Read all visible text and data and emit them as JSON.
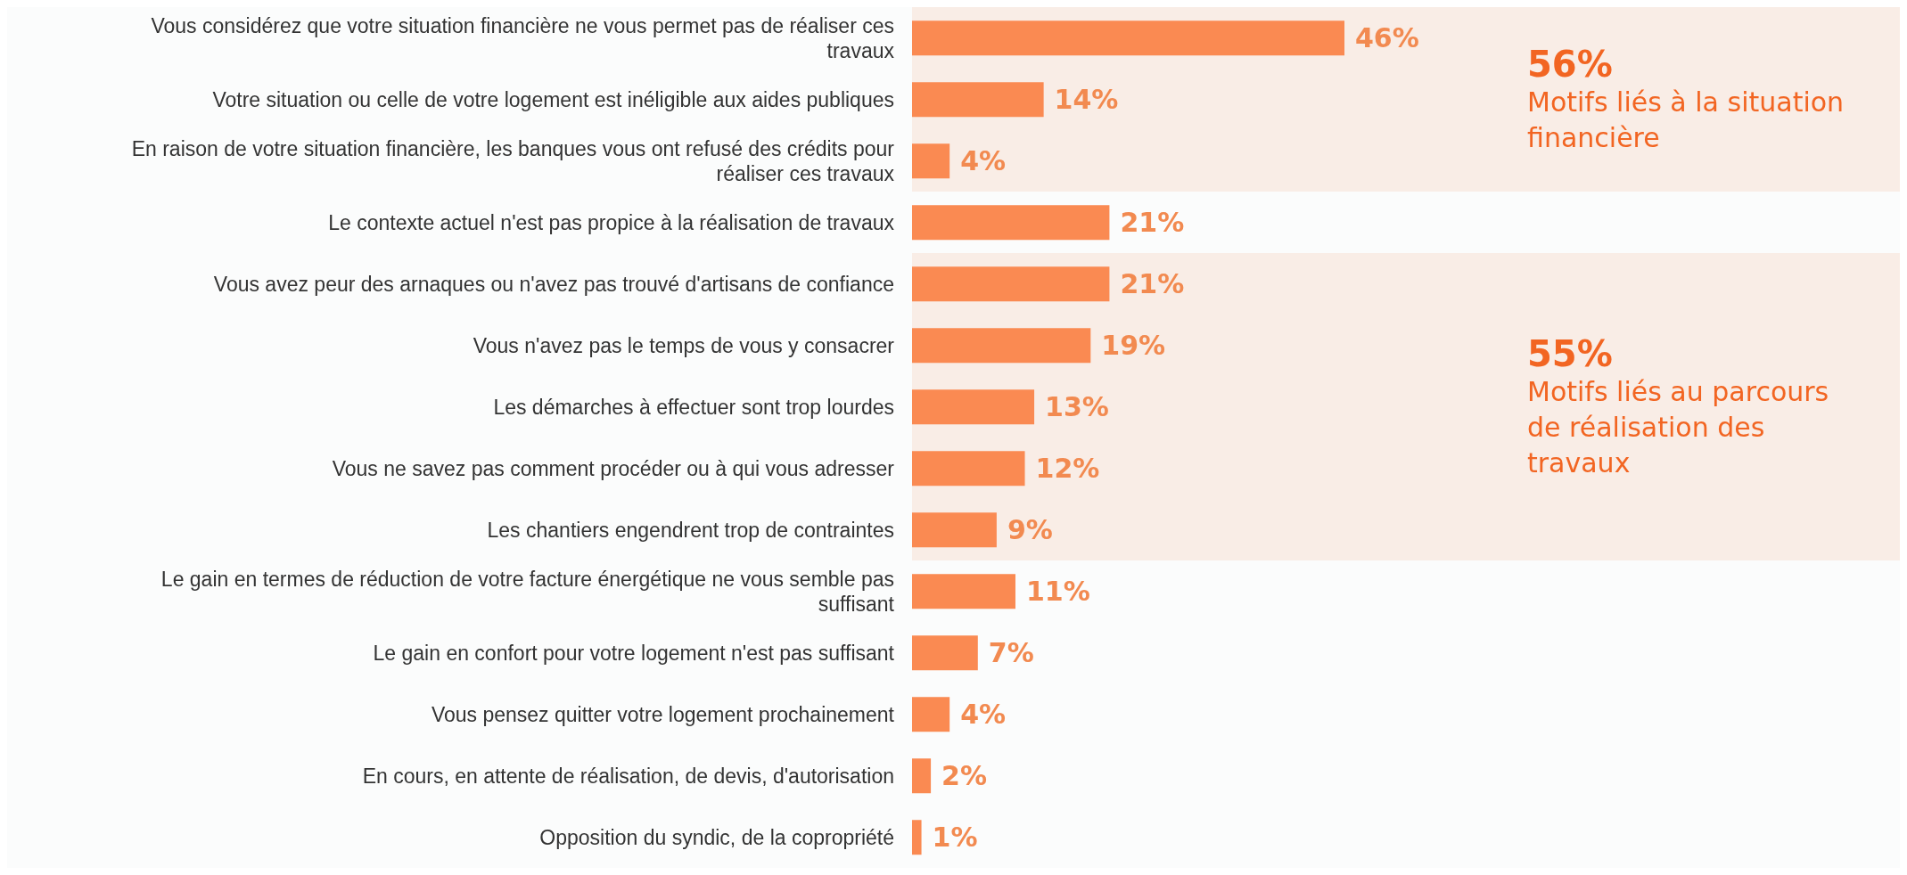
{
  "chart_data": {
    "type": "bar",
    "orientation": "horizontal",
    "categories": [
      "Vous considérez que votre situation financière ne vous permet pas de réaliser ces travaux",
      "Votre situation ou celle de votre logement est inéligible aux aides publiques",
      "En raison de votre situation financière, les banques vous ont refusé des crédits pour réaliser ces travaux",
      "Le contexte actuel n'est pas propice à la réalisation de travaux",
      "Vous avez peur des arnaques ou n'avez pas trouvé d'artisans de confiance",
      "Vous n'avez pas le temps de vous y consacrer",
      "Les démarches à effectuer sont trop lourdes",
      "Vous ne savez pas comment procéder ou à qui vous adresser",
      "Les chantiers engendrent trop de contraintes",
      "Le gain en termes de réduction de votre facture énergétique ne vous semble pas suffisant",
      "Le gain en confort pour votre logement n'est pas suffisant",
      "Vous pensez quitter votre logement prochainement",
      "En cours, en attente de réalisation, de devis, d'autorisation",
      "Opposition du syndic, de la copropriété"
    ],
    "values": [
      46,
      14,
      4,
      21,
      21,
      19,
      13,
      12,
      9,
      11,
      7,
      4,
      2,
      1
    ],
    "value_labels": [
      "46%",
      "14%",
      "4%",
      "21%",
      "21%",
      "19%",
      "13%",
      "12%",
      "9%",
      "11%",
      "7%",
      "4%",
      "2%",
      "1%"
    ],
    "color": "#fa8a52",
    "bands": [
      {
        "axis": "y",
        "from": "Vous considérez que votre situation financière ne vous permet pas de réaliser ces travaux",
        "to": "En raison de votre situation financière, les banques vous ont refusé des crédits pour réaliser ces travaux",
        "label": "Motifs liés à la situation financière",
        "color": "#f9ede6"
      },
      {
        "axis": "y",
        "from": "Vous avez peur des arnaques ou n'avez pas trouvé d'artisans de confiance",
        "to": "Les chantiers engendrent trop de contraintes",
        "label": "Motifs liés au parcours de réalisation des travaux",
        "color": "#f9ede6"
      }
    ],
    "annotations": [
      "56%",
      "55%"
    ],
    "grid": false,
    "legend": false
  }
}
